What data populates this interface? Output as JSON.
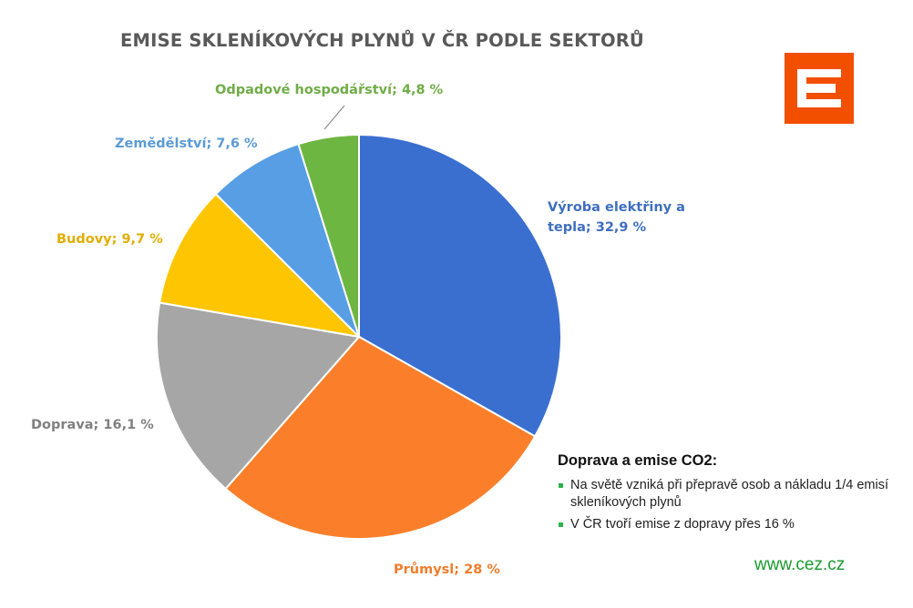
{
  "title": "EMISE SKLENÍKOVÝCH PLYNŮ V ČR PODLE SEKTORŮ",
  "logo": {
    "icon": "cez-logo-icon",
    "color": "#f24f00"
  },
  "chart_data": {
    "type": "pie",
    "title": "EMISE SKLENÍKOVÝCH PLYNŮ V ČR PODLE SEKTORŮ",
    "slices": [
      {
        "label": "Výroba elektřiny a tepla; 32,9 %",
        "label_lines": [
          "Výroba elektřiny a",
          "tepla; 32,9 %"
        ],
        "value": 32.9,
        "color": "#3a6fd0",
        "label_color": "#3f6fc0"
      },
      {
        "label": "Průmysl; 28 %",
        "label_lines": [
          "Průmysl; 28 %"
        ],
        "value": 28,
        "color": "#fb7f2a",
        "label_color": "#f07d2c"
      },
      {
        "label": "Doprava; 16,1 %",
        "label_lines": [
          "Doprava; 16,1 %"
        ],
        "value": 16.1,
        "color": "#a6a6a6",
        "label_color": "#808080"
      },
      {
        "label": "Budovy; 9,7 %",
        "label_lines": [
          "Budovy; 9,7 %"
        ],
        "value": 9.7,
        "color": "#fec502",
        "label_color": "#e0ae00"
      },
      {
        "label": "Zemědělství; 7,6 %",
        "label_lines": [
          "Zemědělství; 7,6 %"
        ],
        "value": 7.6,
        "color": "#579ee4",
        "label_color": "#5b9bd5"
      },
      {
        "label": "Odpadové hospodářství; 4,8 %",
        "label_lines": [
          "Odpadové hospodářství; 4,8 %"
        ],
        "value": 4.8,
        "color": "#6db641",
        "label_color": "#70ad47"
      }
    ]
  },
  "info": {
    "title": "Doprava a emise CO2:",
    "bullets": [
      "Na světě vzniká při přepravě osob a nákladu 1/4 emisí skleníkových plynů",
      "V ČR tvoří emise z dopravy přes 16 %"
    ],
    "bullet_color": "#2bb24c"
  },
  "footer": {
    "url": "www.cez.cz",
    "color": "#1a9a2e"
  }
}
